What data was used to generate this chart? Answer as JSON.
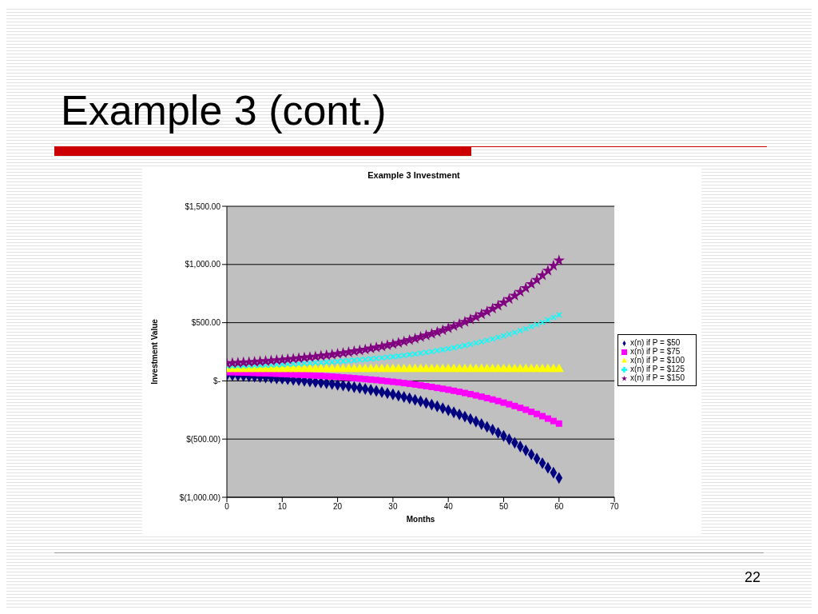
{
  "chart_data": {
    "type": "scatter",
    "title": "Example 3 Investment",
    "xlabel": "Months",
    "ylabel": "Investment Value",
    "annotations": [
      "Example 3 (cont.)",
      "22"
    ],
    "x": [
      0,
      1,
      2,
      3,
      4,
      5,
      6,
      7,
      8,
      9,
      10,
      11,
      12,
      13,
      14,
      15,
      16,
      17,
      18,
      19,
      20,
      21,
      22,
      23,
      24,
      25,
      26,
      27,
      28,
      29,
      30,
      31,
      32,
      33,
      34,
      35,
      36,
      37,
      38,
      39,
      40,
      41,
      42,
      43,
      44,
      45,
      46,
      47,
      48,
      49,
      50,
      51,
      52,
      53,
      54,
      55,
      56,
      57,
      58,
      59,
      60
    ],
    "xlim": [
      0,
      70
    ],
    "xticks": [
      0,
      10,
      20,
      30,
      40,
      50,
      60,
      70
    ],
    "ylim": [
      -1000,
      1500
    ],
    "yticks": [
      {
        "value": -1000,
        "label": "$(1,000.00)"
      },
      {
        "value": -500,
        "label": "$(500.00)"
      },
      {
        "value": 0,
        "label": "$-"
      },
      {
        "value": 500,
        "label": "$500.00"
      },
      {
        "value": 1000,
        "label": "$1,000.00"
      },
      {
        "value": 1500,
        "label": "$1,500.00"
      }
    ],
    "grid": "y",
    "legend": "right",
    "series": [
      {
        "name": "x(n) if P = $50",
        "color": "#000080",
        "marker": "diamond",
        "values": [
          50,
          48,
          45,
          42,
          39,
          36,
          33,
          30,
          26,
          22,
          19,
          14,
          10,
          6,
          1,
          -4,
          -9,
          -15,
          -20,
          -26,
          -33,
          -39,
          -46,
          -54,
          -61,
          -69,
          -78,
          -87,
          -96,
          -106,
          -116,
          -127,
          -138,
          -150,
          -163,
          -176,
          -190,
          -204,
          -219,
          -235,
          -252,
          -270,
          -288,
          -307,
          -328,
          -349,
          -372,
          -395,
          -420,
          -446,
          -473,
          -502,
          -532,
          -564,
          -597,
          -632,
          -668,
          -707,
          -747,
          -789,
          -834
        ]
      },
      {
        "name": "x(n) if P = $75",
        "color": "#ff00ff",
        "marker": "square",
        "values": [
          75,
          74,
          72,
          71,
          70,
          68,
          66,
          65,
          63,
          61,
          59,
          57,
          55,
          53,
          50,
          48,
          45,
          43,
          40,
          37,
          34,
          30,
          27,
          23,
          19,
          15,
          11,
          7,
          2,
          -3,
          -8,
          -13,
          -19,
          -25,
          -31,
          -38,
          -45,
          -52,
          -60,
          -68,
          -76,
          -85,
          -94,
          -104,
          -114,
          -125,
          -136,
          -148,
          -160,
          -173,
          -187,
          -201,
          -216,
          -232,
          -248,
          -266,
          -284,
          -303,
          -324,
          -345,
          -367
        ]
      },
      {
        "name": "x(n) if P = $100",
        "color": "#ffff00",
        "marker": "triangle",
        "values": [
          100,
          100,
          100,
          100,
          100,
          100,
          100,
          100,
          100,
          100,
          100,
          100,
          100,
          100,
          100,
          100,
          100,
          100,
          100,
          100,
          100,
          100,
          100,
          100,
          100,
          100,
          100,
          100,
          100,
          100,
          100,
          100,
          100,
          100,
          100,
          100,
          100,
          100,
          100,
          100,
          100,
          100,
          100,
          100,
          100,
          100,
          100,
          100,
          100,
          100,
          100,
          100,
          100,
          100,
          100,
          100,
          100,
          100,
          100,
          100,
          100
        ]
      },
      {
        "name": "x(n) if P = $125",
        "color": "#00ffff",
        "marker": "cross",
        "values": [
          125,
          126,
          128,
          129,
          130,
          132,
          134,
          135,
          137,
          139,
          141,
          143,
          145,
          147,
          150,
          152,
          155,
          157,
          160,
          163,
          166,
          170,
          173,
          177,
          181,
          185,
          189,
          193,
          198,
          203,
          208,
          213,
          219,
          225,
          231,
          238,
          245,
          252,
          260,
          268,
          276,
          285,
          294,
          304,
          314,
          325,
          336,
          348,
          360,
          373,
          387,
          401,
          416,
          432,
          448,
          466,
          484,
          503,
          524,
          545,
          567
        ]
      },
      {
        "name": "x(n) if P = $150",
        "color": "#800080",
        "marker": "star",
        "values": [
          150,
          153,
          155,
          158,
          161,
          164,
          167,
          170,
          174,
          178,
          181,
          186,
          190,
          194,
          199,
          204,
          209,
          215,
          220,
          226,
          233,
          239,
          246,
          254,
          261,
          269,
          278,
          287,
          296,
          306,
          316,
          327,
          338,
          350,
          363,
          376,
          390,
          404,
          419,
          435,
          452,
          470,
          488,
          507,
          528,
          549,
          572,
          595,
          620,
          646,
          673,
          702,
          732,
          764,
          797,
          832,
          868,
          907,
          947,
          989,
          1034
        ]
      }
    ]
  }
}
